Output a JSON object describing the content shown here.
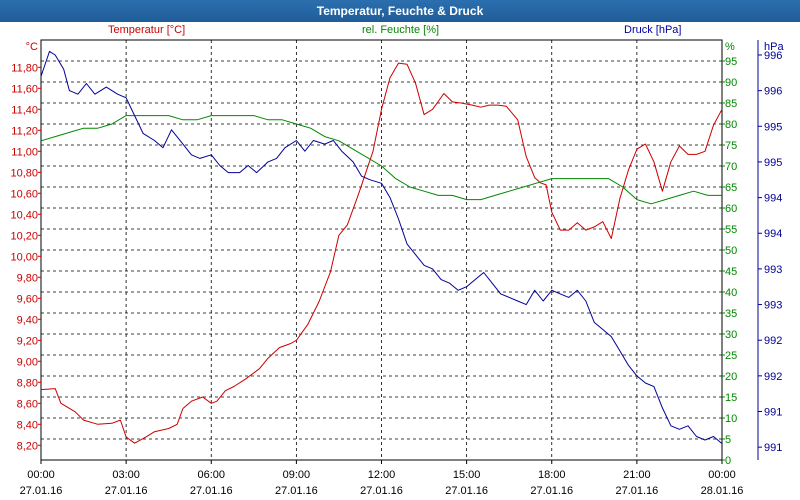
{
  "title": "Temperatur, Feuchte & Druck",
  "headers": {
    "temp": "Temperatur [°C]",
    "hum": "rel. Feuchte [%]",
    "press": "Druck [hPa]"
  },
  "colors": {
    "temp": "#cc0000",
    "hum": "#008800",
    "press": "#000099",
    "title_bar": "#1f5d99"
  },
  "chart_data": {
    "type": "line",
    "title": "Temperatur, Feuchte & Druck",
    "grid": true,
    "x_unit": "hours since 27.01.16 00:00",
    "xlim": [
      0,
      24
    ],
    "x_ticks": [
      {
        "x": 0,
        "time": "00:00",
        "date": "27.01.16"
      },
      {
        "x": 3,
        "time": "03:00",
        "date": "27.01.16"
      },
      {
        "x": 6,
        "time": "06:00",
        "date": "27.01.16"
      },
      {
        "x": 9,
        "time": "09:00",
        "date": "27.01.16"
      },
      {
        "x": 12,
        "time": "12:00",
        "date": "27.01.16"
      },
      {
        "x": 15,
        "time": "15:00",
        "date": "27.01.16"
      },
      {
        "x": 18,
        "time": "18:00",
        "date": "27.01.16"
      },
      {
        "x": 21,
        "time": "21:00",
        "date": "27.01.16"
      },
      {
        "x": 24,
        "time": "00:00",
        "date": "28.01.16"
      }
    ],
    "axes": {
      "temp": {
        "unit": "°C",
        "ylim": [
          8.06,
          12.06
        ],
        "ticks": [
          "8,20",
          "8,40",
          "8,60",
          "8,80",
          "9,00",
          "9,20",
          "9,40",
          "9,60",
          "9,80",
          "10,00",
          "10,20",
          "10,40",
          "10,60",
          "10,80",
          "11,00",
          "11,20",
          "11,40",
          "11,60",
          "11,80"
        ],
        "tick_values": [
          8.2,
          8.4,
          8.6,
          8.8,
          9.0,
          9.2,
          9.4,
          9.6,
          9.8,
          10.0,
          10.2,
          10.4,
          10.6,
          10.8,
          11.0,
          11.2,
          11.4,
          11.6,
          11.8
        ]
      },
      "hum": {
        "unit": "%",
        "ylim": [
          0,
          100
        ],
        "ticks": [
          "0",
          "5",
          "10",
          "15",
          "20",
          "25",
          "30",
          "35",
          "40",
          "45",
          "50",
          "55",
          "60",
          "65",
          "70",
          "75",
          "80",
          "85",
          "90",
          "95"
        ],
        "tick_values": [
          0,
          5,
          10,
          15,
          20,
          25,
          30,
          35,
          40,
          45,
          50,
          55,
          60,
          65,
          70,
          75,
          80,
          85,
          90,
          95
        ]
      },
      "press": {
        "unit": "hPa",
        "ylim": [
          990.82,
          996.71
        ],
        "ticks": [
          "991",
          "991",
          "992",
          "992",
          "993",
          "993",
          "994",
          "994",
          "995",
          "995",
          "996",
          "996"
        ],
        "tick_values": [
          991,
          991.5,
          992,
          992.5,
          993,
          993.5,
          994,
          994.5,
          995,
          995.5,
          996,
          996.5
        ]
      }
    },
    "series": [
      {
        "name": "Temperatur [°C]",
        "axis": "temp",
        "color": "#cc0000",
        "x": [
          0,
          0.5,
          0.7,
          1.2,
          1.5,
          2,
          2.5,
          2.8,
          3,
          3.3,
          3.7,
          4,
          4.5,
          4.8,
          5,
          5.3,
          5.7,
          6,
          6.2,
          6.5,
          6.8,
          7.2,
          7.7,
          8,
          8.4,
          8.8,
          9,
          9.4,
          9.8,
          10.2,
          10.5,
          10.8,
          11.2,
          11.7,
          12,
          12.3,
          12.6,
          12.9,
          13.2,
          13.5,
          13.8,
          14.2,
          14.5,
          14.8,
          15.2,
          15.5,
          15.8,
          16.1,
          16.4,
          16.8,
          17.1,
          17.4,
          17.6,
          17.8,
          18,
          18.3,
          18.6,
          18.9,
          19.2,
          19.5,
          19.8,
          20.1,
          20.4,
          20.7,
          21,
          21.3,
          21.6,
          21.9,
          22.2,
          22.5,
          22.8,
          23.1,
          23.4,
          23.7,
          24
        ],
        "y": [
          8.73,
          8.74,
          8.6,
          8.52,
          8.44,
          8.4,
          8.41,
          8.44,
          8.28,
          8.22,
          8.28,
          8.33,
          8.36,
          8.4,
          8.55,
          8.62,
          8.66,
          8.6,
          8.62,
          8.72,
          8.76,
          8.83,
          8.93,
          9.03,
          9.13,
          9.17,
          9.2,
          9.35,
          9.57,
          9.85,
          10.2,
          10.3,
          10.6,
          11.0,
          11.4,
          11.7,
          11.84,
          11.83,
          11.65,
          11.35,
          11.4,
          11.55,
          11.47,
          11.46,
          11.44,
          11.42,
          11.44,
          11.44,
          11.43,
          11.3,
          10.95,
          10.75,
          10.7,
          10.68,
          10.42,
          10.25,
          10.25,
          10.32,
          10.25,
          10.28,
          10.33,
          10.17,
          10.55,
          10.82,
          11.02,
          11.07,
          10.9,
          10.62,
          10.9,
          11.05,
          10.97,
          10.97,
          11.0,
          11.25,
          11.4
        ]
      },
      {
        "name": "rel. Feuchte [%]",
        "axis": "hum",
        "color": "#008800",
        "x": [
          0,
          0.5,
          1,
          1.5,
          2,
          2.5,
          3,
          3.5,
          4,
          4.5,
          5,
          5.5,
          6,
          6.5,
          7,
          7.5,
          8,
          8.5,
          9,
          9.5,
          10,
          10.5,
          11,
          11.5,
          12,
          12.5,
          13,
          13.5,
          14,
          14.5,
          15,
          15.5,
          16,
          16.5,
          17,
          17.5,
          18,
          18.5,
          19,
          19.5,
          20,
          20.5,
          21,
          21.5,
          22,
          22.5,
          23,
          23.5,
          24
        ],
        "y": [
          76,
          77,
          78,
          79,
          79,
          80,
          82,
          82,
          82,
          82,
          81,
          81,
          82,
          82,
          82,
          82,
          81,
          81,
          80,
          79,
          77,
          76,
          74,
          72,
          70,
          67,
          65,
          64,
          63,
          63,
          62,
          62,
          63,
          64,
          65,
          66,
          67,
          67,
          67,
          67,
          67,
          65,
          62,
          61,
          62,
          63,
          64,
          63,
          63
        ]
      },
      {
        "name": "Druck [hPa]",
        "axis": "press",
        "color": "#000099",
        "x": [
          0,
          0.3,
          0.5,
          0.8,
          1,
          1.3,
          1.6,
          1.9,
          2.3,
          2.7,
          3,
          3.3,
          3.6,
          4,
          4.3,
          4.6,
          5,
          5.3,
          5.6,
          6,
          6.3,
          6.6,
          7,
          7.3,
          7.6,
          8,
          8.3,
          8.6,
          9,
          9.3,
          9.6,
          10,
          10.3,
          10.6,
          11,
          11.3,
          11.6,
          12,
          12.3,
          12.6,
          12.9,
          13.2,
          13.5,
          13.8,
          14.1,
          14.4,
          14.7,
          15,
          15.3,
          15.6,
          15.9,
          16.2,
          16.5,
          16.8,
          17.1,
          17.4,
          17.7,
          18,
          18.3,
          18.6,
          18.9,
          19.2,
          19.5,
          19.8,
          20.1,
          20.4,
          20.7,
          21,
          21.3,
          21.6,
          21.9,
          22.2,
          22.5,
          22.8,
          23.1,
          23.4,
          23.7,
          24
        ],
        "y": [
          996.2,
          996.55,
          996.5,
          996.3,
          996.0,
          995.95,
          996.1,
          995.95,
          996.05,
          995.95,
          995.9,
          995.65,
          995.4,
          995.3,
          995.2,
          995.45,
          995.25,
          995.1,
          995.05,
          995.1,
          994.95,
          994.85,
          994.85,
          994.95,
          994.85,
          995.0,
          995.05,
          995.2,
          995.3,
          995.15,
          995.3,
          995.25,
          995.3,
          995.15,
          995.0,
          994.8,
          994.75,
          994.7,
          994.5,
          994.2,
          993.85,
          993.7,
          993.55,
          993.5,
          993.35,
          993.3,
          993.2,
          993.25,
          993.35,
          993.45,
          993.3,
          993.15,
          993.1,
          993.05,
          993.0,
          993.2,
          993.05,
          993.2,
          993.15,
          993.1,
          993.2,
          993.05,
          992.75,
          992.65,
          992.55,
          992.35,
          992.15,
          992.0,
          991.9,
          991.85,
          991.55,
          991.3,
          991.25,
          991.3,
          991.15,
          991.1,
          991.15,
          991.05
        ]
      }
    ]
  }
}
